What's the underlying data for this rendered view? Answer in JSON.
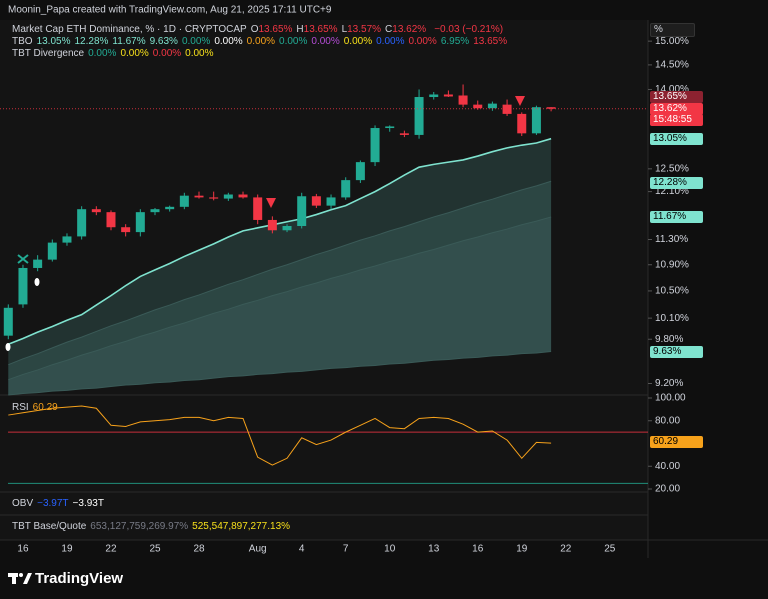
{
  "header": {
    "credit": "Moonin_Papa created with TradingView.com, Aug 21, 2025 17:11 UTC+9"
  },
  "legend": {
    "ohlc": [
      {
        "key": "O",
        "text": "13.65%"
      },
      {
        "key": "H",
        "text": "13.65%"
      },
      {
        "key": "L",
        "text": "13.57%"
      },
      {
        "key": "C",
        "text": "13.62%"
      }
    ],
    "change": "−0.03 (−0.21%)",
    "tbo": {
      "name": "TBO",
      "values": [
        {
          "text": "13.05%",
          "color": "#7fe3cf"
        },
        {
          "text": "12.28%",
          "color": "#7fe3cf"
        },
        {
          "text": "11.67%",
          "color": "#7fe3cf"
        },
        {
          "text": "9.63%",
          "color": "#7fe3cf"
        },
        {
          "text": "0.00%",
          "color": "#22ab94"
        },
        {
          "text": "0.00%",
          "color": "#ffffff"
        },
        {
          "text": "0.00%",
          "color": "#f7a21b"
        },
        {
          "text": "0.00%",
          "color": "#22ab94"
        },
        {
          "text": "0.00%",
          "color": "#b44cd6"
        },
        {
          "text": "0.00%",
          "color": "#f7e01b"
        },
        {
          "text": "0.00%",
          "color": "#2962ff"
        },
        {
          "text": "0.00%",
          "color": "#f23645"
        },
        {
          "text": "6.95%",
          "color": "#22ab94"
        },
        {
          "text": "13.65%",
          "color": "#f23645"
        }
      ]
    },
    "tbt_divergence": {
      "name": "TBT Divergence",
      "values": [
        {
          "text": "0.00%",
          "color": "#22ab94"
        },
        {
          "text": "0.00%",
          "color": "#f7e01b"
        },
        {
          "text": "0.00%",
          "color": "#f23645"
        },
        {
          "text": "0.00%",
          "color": "#f7e01b"
        }
      ]
    },
    "rsi_value": "60.29",
    "obv": {
      "name": "OBV",
      "values": [
        "−3.97T",
        "−3.93T"
      ]
    },
    "tbt_base_quote": {
      "name": "TBT Base/Quote",
      "values": [
        "653,127,759,269.97%",
        "525,547,897,277.13%"
      ]
    }
  },
  "price_scale": {
    "unit": "%",
    "badges": [
      "13.65%",
      "13.62%",
      "13.05%",
      "12.28%",
      "11.67%",
      "9.63%"
    ],
    "countdown": "15:48:55",
    "rsi_badge": "60.29"
  },
  "chart_data": [
    {
      "type": "candlestick",
      "title": "Market Cap ETH Dominance, % · 1D · CRYPTOCAP",
      "categories": [
        null,
        "16",
        null,
        null,
        "19",
        null,
        null,
        "22",
        null,
        null,
        "25",
        null,
        null,
        "28",
        null,
        null,
        null,
        "Aug",
        null,
        null,
        "4",
        null,
        null,
        "7",
        null,
        null,
        "10",
        null,
        null,
        "13",
        null,
        null,
        "16",
        null,
        null,
        "19",
        null,
        null,
        "22",
        null,
        null,
        "25",
        null
      ],
      "open": [
        9.85,
        10.3,
        10.85,
        10.98,
        11.25,
        11.35,
        11.8,
        11.75,
        11.5,
        11.42,
        11.75,
        11.8,
        11.84,
        12.03,
        12.0,
        11.98,
        12.05,
        12.0,
        11.62,
        11.45,
        11.52,
        12.02,
        11.86,
        12.0,
        12.3,
        12.62,
        13.25,
        13.15,
        13.12,
        13.85,
        13.9,
        13.88,
        13.7,
        13.63,
        13.7,
        13.52,
        13.15,
        13.65,
        null,
        null,
        null,
        null,
        null
      ],
      "high": [
        10.3,
        10.9,
        11.05,
        11.3,
        11.4,
        11.85,
        11.85,
        11.78,
        11.55,
        11.8,
        11.82,
        11.86,
        12.08,
        12.1,
        12.1,
        12.08,
        12.1,
        12.05,
        11.68,
        11.55,
        12.08,
        12.06,
        12.05,
        12.35,
        12.65,
        13.3,
        13.3,
        13.2,
        14.0,
        13.95,
        13.98,
        14.1,
        13.78,
        13.76,
        13.8,
        13.55,
        13.68,
        13.65,
        null,
        null,
        null,
        null,
        null
      ],
      "low": [
        9.8,
        10.25,
        10.8,
        10.95,
        11.2,
        11.3,
        11.7,
        11.45,
        11.35,
        11.35,
        11.7,
        11.76,
        11.8,
        11.98,
        11.95,
        11.94,
        11.98,
        11.55,
        11.4,
        11.42,
        11.48,
        11.82,
        11.8,
        11.96,
        12.25,
        12.55,
        13.18,
        13.08,
        13.05,
        13.8,
        13.85,
        13.65,
        13.6,
        13.58,
        13.48,
        13.1,
        13.12,
        13.57,
        null,
        null,
        null,
        null,
        null
      ],
      "close": [
        10.25,
        10.85,
        10.98,
        11.25,
        11.35,
        11.8,
        11.75,
        11.5,
        11.42,
        11.75,
        11.8,
        11.84,
        12.03,
        12.0,
        11.98,
        12.05,
        12.0,
        11.62,
        11.45,
        11.52,
        12.02,
        11.86,
        12.0,
        12.3,
        12.62,
        13.25,
        13.28,
        13.12,
        13.85,
        13.9,
        13.86,
        13.7,
        13.63,
        13.72,
        13.52,
        13.15,
        13.65,
        13.62,
        null,
        null,
        null,
        null,
        null
      ],
      "up_color": "#22ab94",
      "down_color": "#f23645",
      "series": [
        {
          "color": "#7fe3cf",
          "values": [
            9.73,
            9.81,
            9.9,
            9.98,
            10.07,
            10.15,
            10.29,
            10.43,
            10.58,
            10.72,
            10.82,
            10.92,
            11.03,
            11.13,
            11.23,
            11.34,
            11.44,
            11.49,
            11.54,
            11.59,
            11.64,
            11.71,
            11.79,
            11.86,
            11.98,
            12.1,
            12.24,
            12.39,
            12.53,
            12.58,
            12.62,
            12.66,
            12.73,
            12.81,
            12.88,
            12.93,
            12.97,
            13.05,
            null,
            null,
            null,
            null,
            null
          ]
        },
        {
          "color": "#3a5a57",
          "values": [
            9.45,
            9.53,
            9.6,
            9.68,
            9.76,
            9.83,
            9.91,
            9.99,
            10.06,
            10.14,
            10.22,
            10.29,
            10.37,
            10.44,
            10.52,
            10.6,
            10.67,
            10.75,
            10.83,
            10.9,
            10.98,
            11.06,
            11.13,
            11.21,
            11.29,
            11.36,
            11.44,
            11.51,
            11.59,
            11.67,
            11.74,
            11.82,
            11.9,
            11.97,
            12.05,
            12.13,
            12.2,
            12.28,
            null,
            null,
            null,
            null,
            null
          ]
        },
        {
          "color": "#3a5a57",
          "values": [
            9.25,
            9.32,
            9.38,
            9.45,
            9.51,
            9.58,
            9.64,
            9.71,
            9.77,
            9.84,
            9.9,
            9.97,
            10.03,
            10.1,
            10.17,
            10.23,
            10.3,
            10.36,
            10.43,
            10.49,
            10.56,
            10.62,
            10.69,
            10.75,
            10.82,
            10.88,
            10.95,
            11.01,
            11.08,
            11.14,
            11.21,
            11.28,
            11.34,
            11.41,
            11.47,
            11.54,
            11.6,
            11.67,
            null,
            null,
            null,
            null,
            null
          ]
        },
        {
          "color": "#3a5a57",
          "values": [
            9.05,
            9.07,
            9.08,
            9.1,
            9.11,
            9.13,
            9.14,
            9.16,
            9.18,
            9.19,
            9.21,
            9.22,
            9.24,
            9.25,
            9.27,
            9.29,
            9.3,
            9.32,
            9.33,
            9.35,
            9.36,
            9.38,
            9.4,
            9.41,
            9.43,
            9.44,
            9.46,
            9.47,
            9.49,
            9.51,
            9.52,
            9.54,
            9.55,
            9.57,
            9.58,
            9.6,
            9.61,
            9.63,
            null,
            null,
            null,
            null,
            null
          ]
        }
      ],
      "log": true,
      "ylim": [
        9.05,
        15.46
      ],
      "yticks": [
        {
          "value": 9.2,
          "label": "9.20%"
        },
        {
          "value": 9.8,
          "label": "9.80%"
        },
        {
          "value": 10.1,
          "label": "10.10%"
        },
        {
          "value": 10.5,
          "label": "10.50%"
        },
        {
          "value": 10.9,
          "label": "10.90%"
        },
        {
          "value": 11.3,
          "label": "11.30%"
        },
        {
          "value": 12.1,
          "label": "12.10%"
        },
        {
          "value": 12.5,
          "label": "12.50%"
        },
        {
          "value": 14.0,
          "label": "14.00%"
        },
        {
          "value": 14.5,
          "label": "14.50%"
        },
        {
          "value": 15.0,
          "label": "15.00%"
        }
      ]
    },
    {
      "type": "line",
      "title": "RSI",
      "color": "#f7a21b",
      "values": [
        85,
        87,
        89,
        91,
        92,
        93,
        91,
        76,
        75,
        79,
        80,
        81,
        83,
        83,
        80,
        83,
        82,
        48,
        41,
        47,
        65,
        59,
        63,
        70,
        76,
        82,
        74,
        73,
        82,
        83,
        82,
        77,
        70,
        71,
        63,
        47,
        61,
        60.29,
        null,
        null,
        null,
        null,
        null
      ],
      "levels": [
        {
          "value": 70,
          "color": "#f23645"
        },
        {
          "value": 25,
          "color": "#22ab94"
        }
      ],
      "ylim": [
        20,
        100
      ],
      "yticks": [
        {
          "value": 20,
          "label": "20.00"
        },
        {
          "value": 40,
          "label": "40.00"
        },
        {
          "value": 80,
          "label": "80.00"
        },
        {
          "value": 100,
          "label": "100.00"
        }
      ]
    }
  ],
  "footer": {
    "logo": "TradingView"
  }
}
